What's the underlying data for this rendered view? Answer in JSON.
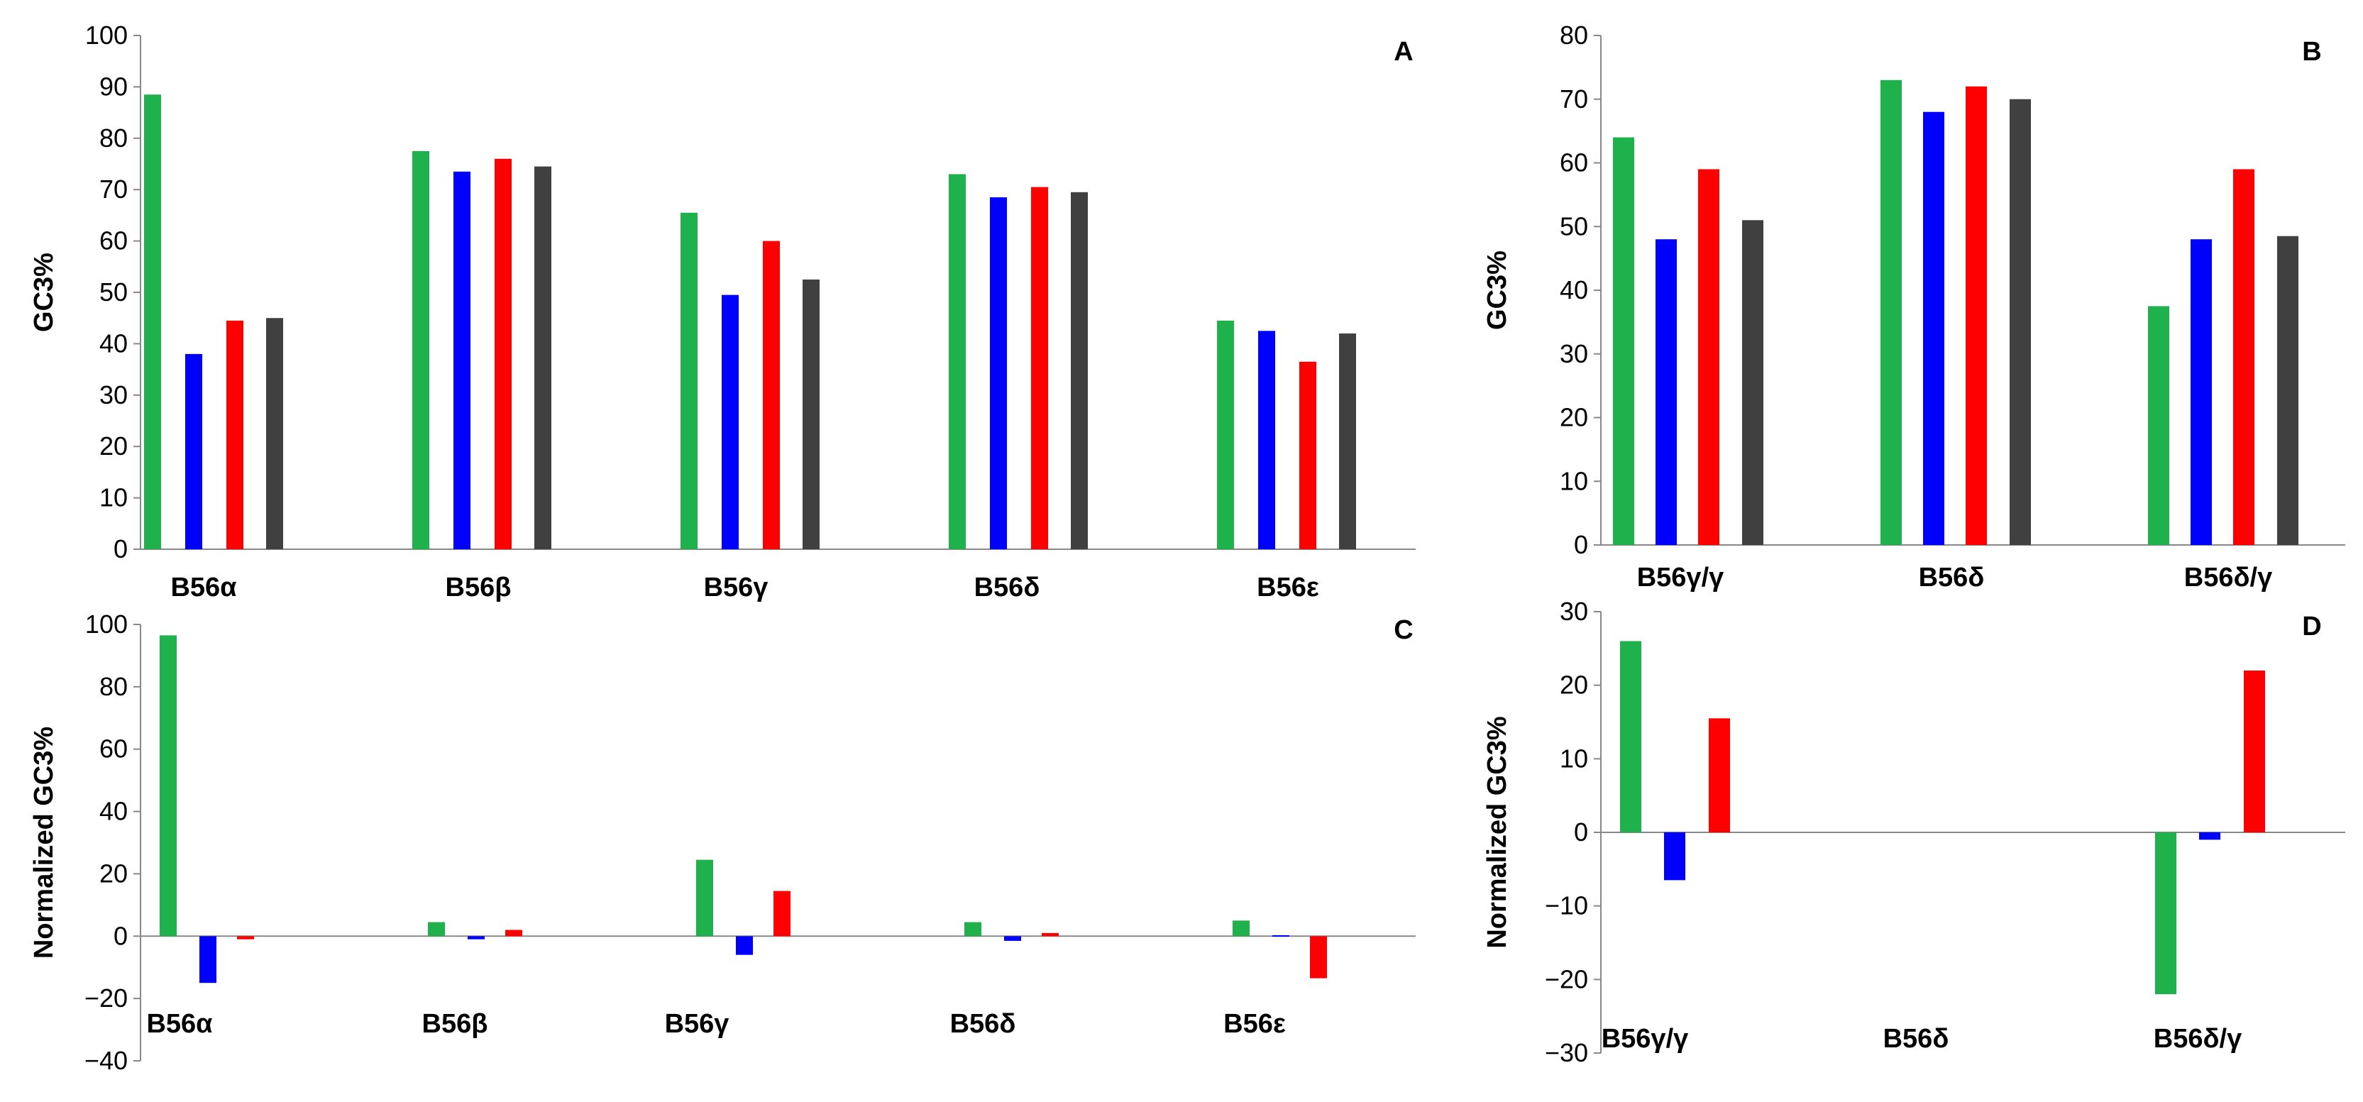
{
  "colors": {
    "green": "#1fb14b",
    "blue": "#0000ff",
    "red": "#ff0000",
    "dark": "#404040"
  },
  "chart_data": [
    {
      "panel": "A",
      "type": "bar",
      "ylabel": "GC3%",
      "ylim": [
        0,
        100
      ],
      "yticks": [
        0,
        10,
        20,
        30,
        40,
        50,
        60,
        70,
        80,
        90,
        100
      ],
      "categories": [
        "B56α",
        "B56β",
        "B56γ",
        "B56δ",
        "B56ε"
      ],
      "series": [
        {
          "color": "#1fb14b",
          "values": [
            88.5,
            77.5,
            65.5,
            73,
            44.5
          ]
        },
        {
          "color": "#0000ff",
          "values": [
            38,
            73.5,
            49.5,
            68.5,
            42.5
          ]
        },
        {
          "color": "#ff0000",
          "values": [
            44.5,
            76,
            60,
            70.5,
            36.5
          ]
        },
        {
          "color": "#404040",
          "values": [
            45,
            74.5,
            52.5,
            69.5,
            42
          ]
        }
      ]
    },
    {
      "panel": "B",
      "type": "bar",
      "ylabel": "GC3%",
      "ylim": [
        0,
        80
      ],
      "yticks": [
        0,
        10,
        20,
        30,
        40,
        50,
        60,
        70,
        80
      ],
      "categories": [
        "B56γ/γ",
        "B56δ",
        "B56δ/γ"
      ],
      "series": [
        {
          "color": "#1fb14b",
          "values": [
            64,
            73,
            37.5
          ]
        },
        {
          "color": "#0000ff",
          "values": [
            48,
            68,
            48
          ]
        },
        {
          "color": "#ff0000",
          "values": [
            59,
            72,
            59
          ]
        },
        {
          "color": "#404040",
          "values": [
            51,
            70,
            48.5
          ]
        }
      ]
    },
    {
      "panel": "C",
      "type": "bar",
      "ylabel": "Normalized GC3%",
      "ylim": [
        -40,
        100
      ],
      "yticks": [
        -40,
        -20,
        0,
        20,
        40,
        60,
        80,
        100
      ],
      "categories": [
        "B56α",
        "B56β",
        "B56γ",
        "B56δ",
        "B56ε"
      ],
      "series": [
        {
          "color": "#1fb14b",
          "values": [
            96.5,
            4.5,
            24.5,
            4.5,
            5
          ]
        },
        {
          "color": "#0000ff",
          "values": [
            -15,
            -1,
            -6,
            -1.5,
            0.3
          ]
        },
        {
          "color": "#ff0000",
          "values": [
            -1,
            2,
            14.5,
            1,
            -13.5
          ]
        }
      ]
    },
    {
      "panel": "D",
      "type": "bar",
      "ylabel": "Normalized GC3%",
      "ylim": [
        -30,
        30
      ],
      "yticks": [
        -30,
        -20,
        -10,
        0,
        10,
        20,
        30
      ],
      "categories": [
        "B56γ/γ",
        "B56δ",
        "B56δ/γ"
      ],
      "series": [
        {
          "color": "#1fb14b",
          "values": [
            26,
            0,
            -22
          ]
        },
        {
          "color": "#0000ff",
          "values": [
            -6.5,
            0,
            -1
          ]
        },
        {
          "color": "#ff0000",
          "values": [
            15.5,
            0,
            22
          ]
        }
      ]
    }
  ]
}
